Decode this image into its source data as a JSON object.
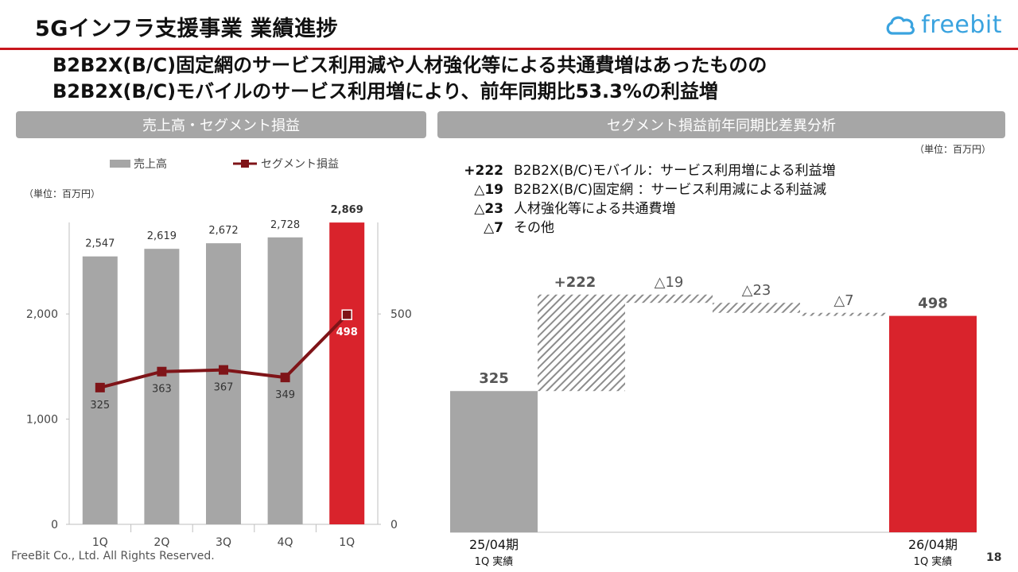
{
  "header": {
    "title": "5Gインフラ支援事業 業績進捗",
    "logo": "freebit",
    "headline_line1": "B2B2X(B/C)固定網のサービス利用減や人材強化等による共通費増はあったものの",
    "headline_line2": "B2B2X(B/C)モバイルのサービス利用増により、前年同期比53.3%の利益増"
  },
  "left_panel": {
    "section_label": "売上高・セグメント損益",
    "unit": "（単位：百万円）"
  },
  "right_panel": {
    "section_label": "セグメント損益前年同期比差異分析",
    "unit": "（単位：百万円）",
    "notes": [
      {
        "code": "+222",
        "text": "B2B2X(B/C)モバイル：サービス利用増による利益増"
      },
      {
        "code": "△19",
        "text": "B2B2X(B/C)固定網 ：サービス利用減による利益減"
      },
      {
        "code": "△23",
        "text": "人材強化等による共通費増"
      },
      {
        "code": "△7",
        "text": "その他"
      }
    ]
  },
  "colors": {
    "accent_red": "#d9232c",
    "bar_gray": "#a6a6a6",
    "line_dark_red": "#7f1418",
    "header_rule": "#c8161d",
    "logo_blue": "#3aa3df"
  },
  "chart_data": [
    {
      "type": "bar",
      "categories": [
        "1Q",
        "2Q",
        "3Q",
        "4Q",
        "1Q"
      ],
      "series": [
        {
          "name": "売上高",
          "type": "bar",
          "axis": "left",
          "values": [
            2547,
            2619,
            2672,
            2728,
            2869
          ],
          "labels": [
            "2,547",
            "2,619",
            "2,672",
            "2,728",
            "2,869"
          ],
          "highlight_index": 4
        },
        {
          "name": "セグメント損益",
          "type": "line",
          "axis": "right",
          "values": [
            325,
            363,
            367,
            349,
            498
          ],
          "labels": [
            "325",
            "363",
            "367",
            "349",
            "498"
          ]
        }
      ],
      "left_axis": {
        "ticks": [
          0,
          1000,
          2000
        ],
        "tick_labels": [
          "0",
          "1,000",
          "2,000"
        ],
        "ylim": [
          0,
          2900
        ]
      },
      "right_axis": {
        "ticks": [
          0,
          500
        ],
        "tick_labels": [
          "0",
          "500"
        ],
        "ylim": [
          0,
          725
        ]
      }
    },
    {
      "type": "waterfall",
      "start": {
        "label": "325",
        "value": 325,
        "period": "25/04期",
        "sub": "1Q 実績"
      },
      "steps": [
        {
          "label": "+222",
          "value": 222
        },
        {
          "label": "△19",
          "value": -19
        },
        {
          "label": "△23",
          "value": -23
        },
        {
          "label": "△7",
          "value": -7
        }
      ],
      "end": {
        "label": "498",
        "value": 498,
        "period": "26/04期",
        "sub": "1Q 実績"
      },
      "ylim": [
        0,
        600
      ]
    }
  ],
  "footer": {
    "copyright": "FreeBit Co., Ltd. All Rights Reserved.",
    "page_number": "18"
  }
}
